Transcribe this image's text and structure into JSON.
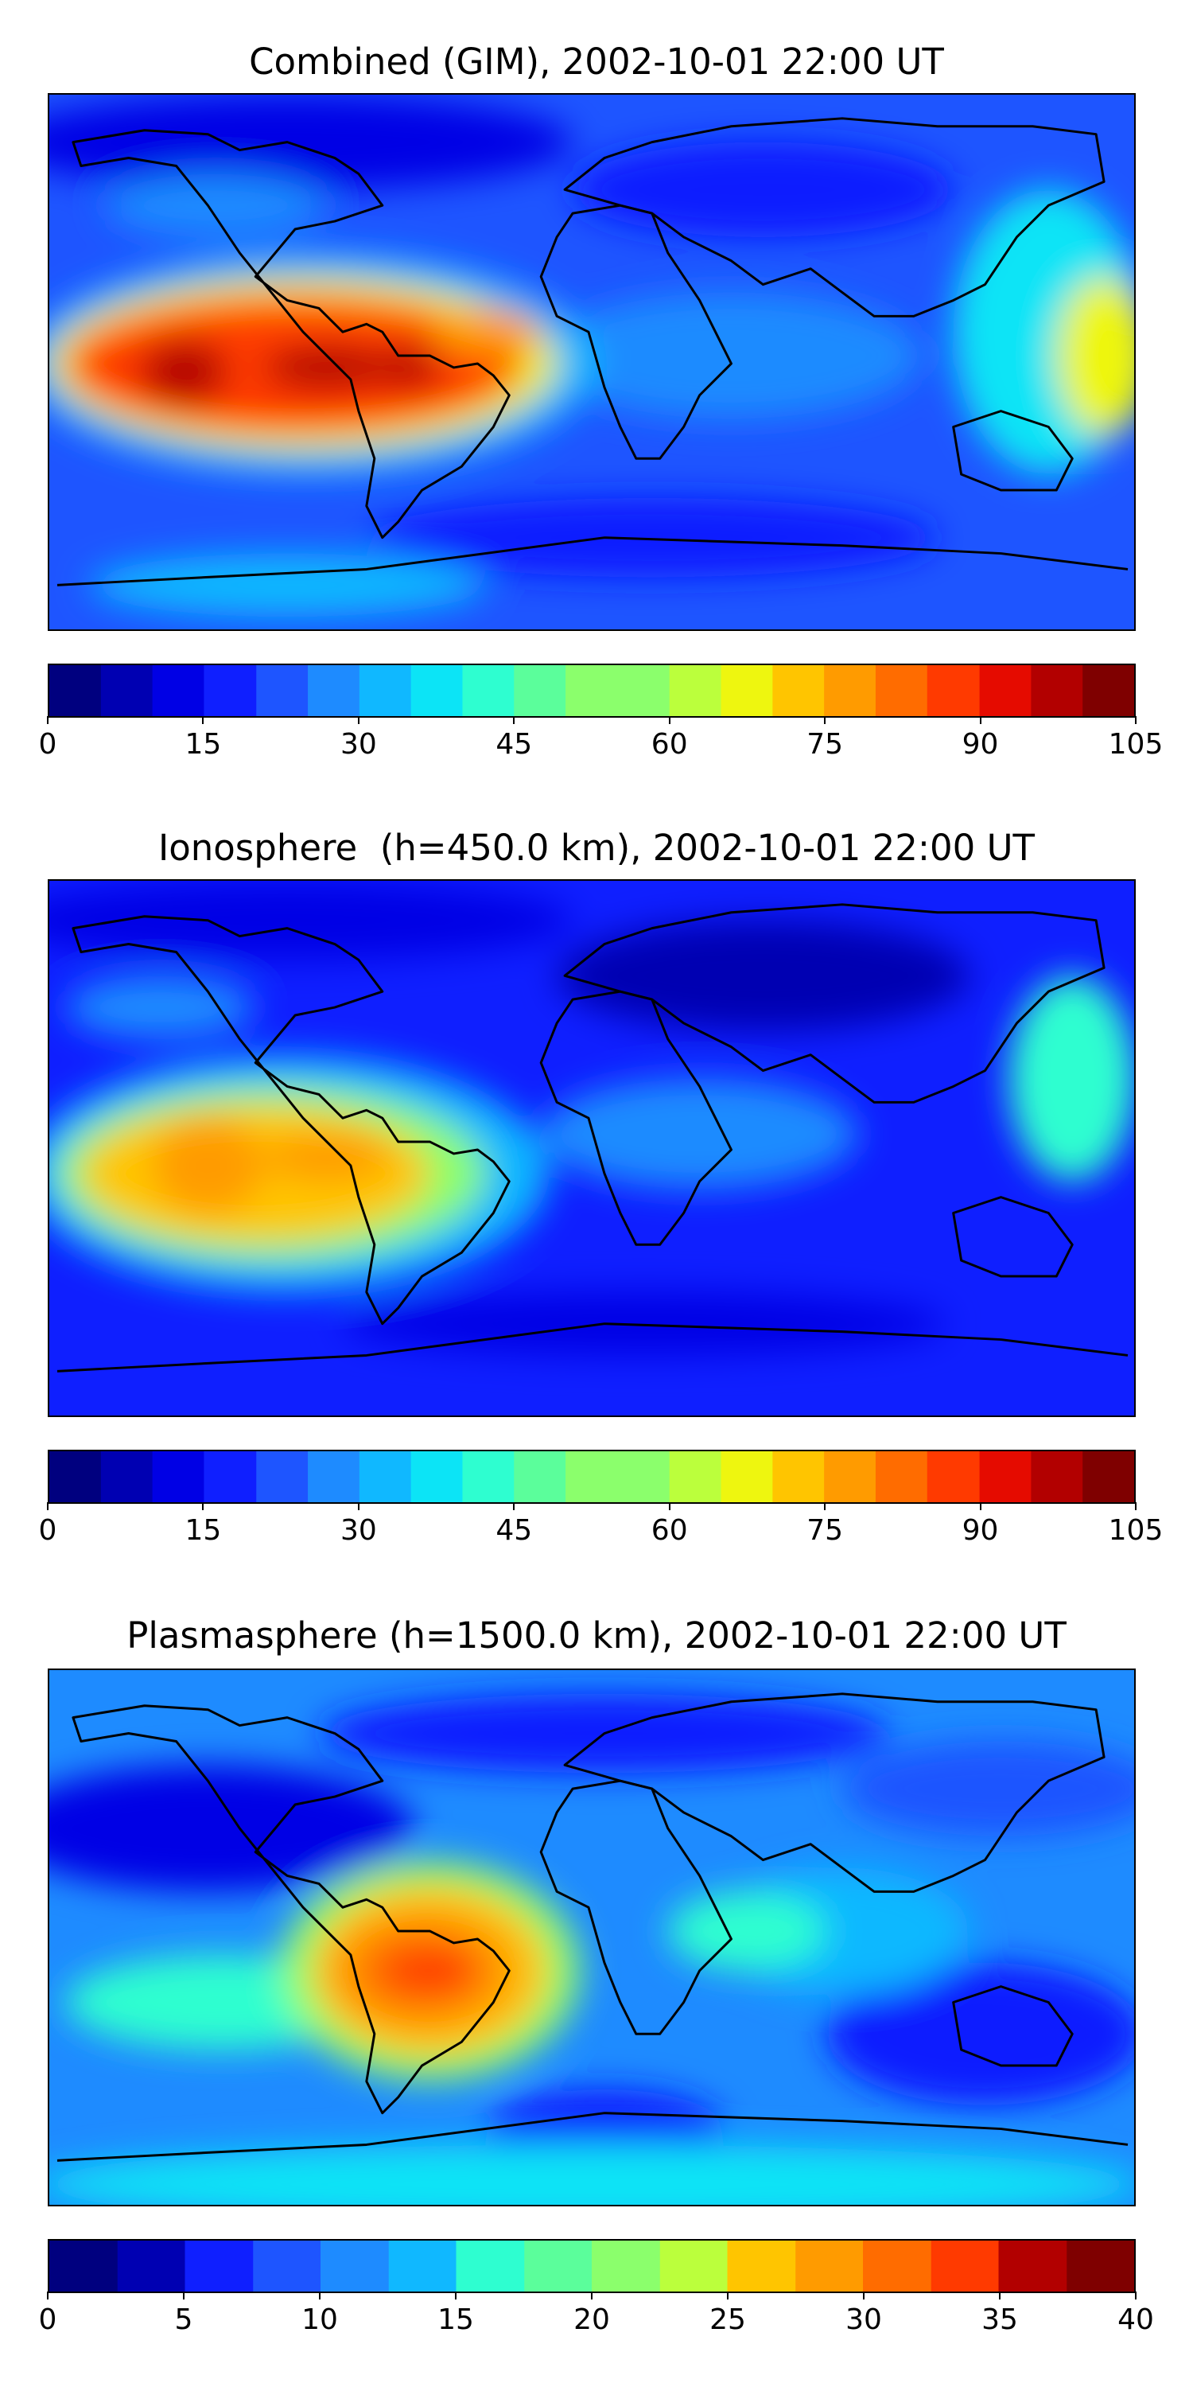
{
  "colors": {
    "jet": [
      "#00007f",
      "#0000b2",
      "#0000e5",
      "#0f1fff",
      "#1e55ff",
      "#1e8bff",
      "#10b8ff",
      "#0ce4f6",
      "#2efed0",
      "#5bfe9b",
      "#8bff6c",
      "#bbff3c",
      "#eef60f",
      "#ffc500",
      "#ff9b00",
      "#ff6c00",
      "#ff3a00",
      "#e50b00",
      "#b20000",
      "#7f0000"
    ]
  },
  "panels": [
    {
      "title": "Combined (GIM), 2002-10-01 22:00 UT",
      "colorbar": {
        "min": 0,
        "max": 105,
        "levels": 21,
        "ticks": [
          "0",
          "15",
          "30",
          "45",
          "60",
          "75",
          "90",
          "105"
        ]
      }
    },
    {
      "title": "Ionosphere  (h=450.0 km), 2002-10-01 22:00 UT",
      "colorbar": {
        "min": 0,
        "max": 105,
        "levels": 21,
        "ticks": [
          "0",
          "15",
          "30",
          "45",
          "60",
          "75",
          "90",
          "105"
        ]
      }
    },
    {
      "title": "Plasmasphere (h=1500.0 km), 2002-10-01 22:00 UT",
      "colorbar": {
        "min": 0,
        "max": 40,
        "levels": 16,
        "ticks": [
          "0",
          "5",
          "10",
          "15",
          "20",
          "25",
          "30",
          "35",
          "40"
        ]
      }
    }
  ]
}
